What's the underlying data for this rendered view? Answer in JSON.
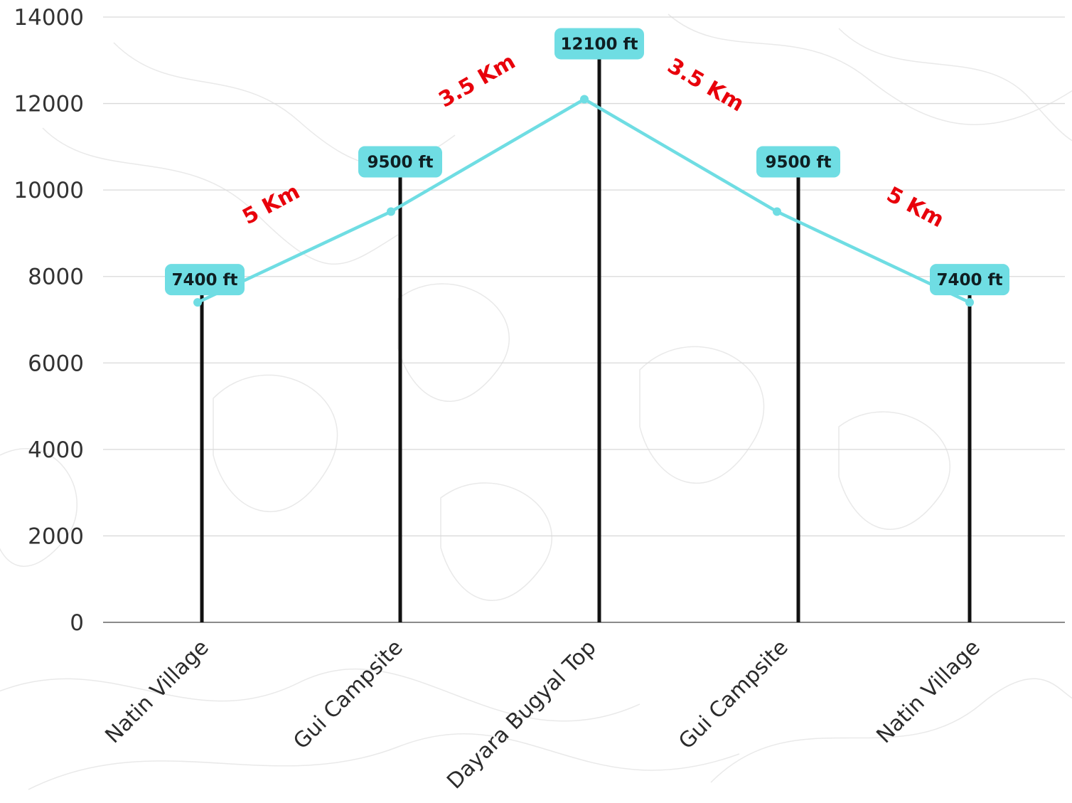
{
  "chart_data": {
    "type": "line",
    "categories": [
      "Natin Village",
      "Gui Campsite",
      "Dayara Bugyal Top",
      "Gui Campsite",
      "Natin Village"
    ],
    "series": [
      {
        "values": [
          7400,
          9500,
          12100,
          9500,
          7400
        ]
      }
    ],
    "point_labels": [
      "7400 ft",
      "9500 ft",
      "12100 ft",
      "9500 ft",
      "7400 ft"
    ],
    "segment_labels": [
      "5 Km",
      "3.5 Km",
      "3.5 Km",
      "5 Km"
    ],
    "ylim": [
      0,
      14000
    ],
    "yticks": [
      "0",
      "2000",
      "4000",
      "6000",
      "8000",
      "10000",
      "12000",
      "14000"
    ],
    "grid": true,
    "colors": {
      "line": "#6fdde3",
      "badge": "#6fdde3",
      "stem": "#111111",
      "segment_label": "#e8000b",
      "grid": "#d9d9d9",
      "axis": "#8a8a8a"
    }
  }
}
